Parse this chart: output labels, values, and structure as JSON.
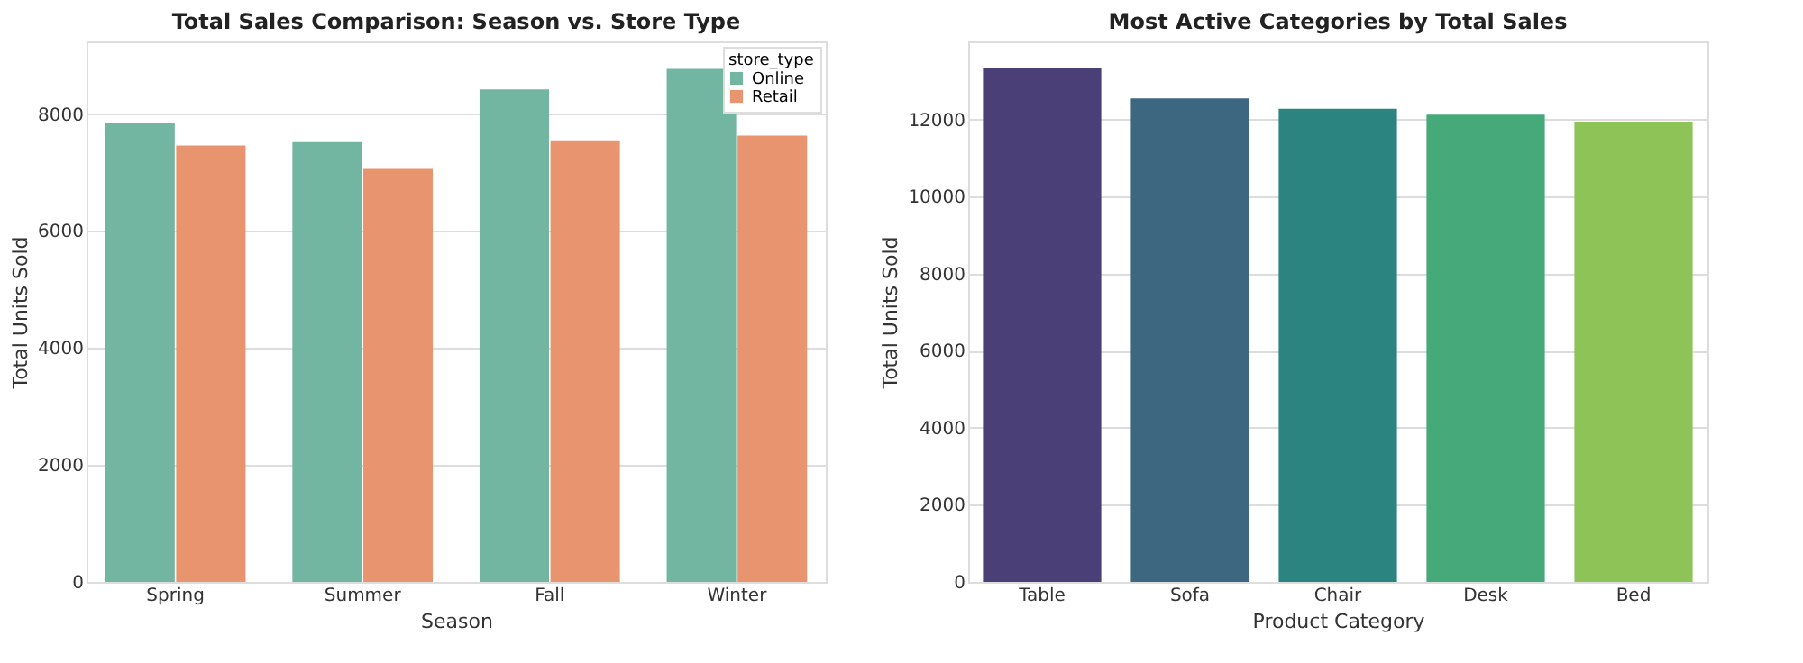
{
  "chart_data": [
    {
      "type": "bar",
      "title": "Total Sales Comparison: Season vs. Store Type",
      "xlabel": "Season",
      "ylabel": "Total Units Sold",
      "legend_title": "store_type",
      "legend": "top right",
      "grid": "y",
      "categories": [
        "Spring",
        "Summer",
        "Fall",
        "Winter"
      ],
      "series": [
        {
          "name": "Online",
          "color": "#72b6a1",
          "values": [
            7850,
            7520,
            8420,
            8770
          ]
        },
        {
          "name": "Retail",
          "color": "#e8956f",
          "values": [
            7460,
            7060,
            7550,
            7630
          ]
        }
      ],
      "ylim": [
        0,
        9240
      ],
      "yticks": [
        0,
        2000,
        4000,
        6000,
        8000
      ]
    },
    {
      "type": "bar",
      "title": "Most Active Categories by Total Sales",
      "xlabel": "Product Category",
      "ylabel": "Total Units Sold",
      "grid": "y",
      "categories": [
        "Table",
        "Sofa",
        "Chair",
        "Desk",
        "Bed"
      ],
      "values": [
        13340,
        12550,
        12280,
        12130,
        11950
      ],
      "colors": [
        "#4b3f78",
        "#3d6680",
        "#2c8480",
        "#46a97a",
        "#8dc357"
      ],
      "ylim": [
        0,
        14030
      ],
      "yticks": [
        0,
        2000,
        4000,
        6000,
        8000,
        10000,
        12000
      ]
    }
  ]
}
